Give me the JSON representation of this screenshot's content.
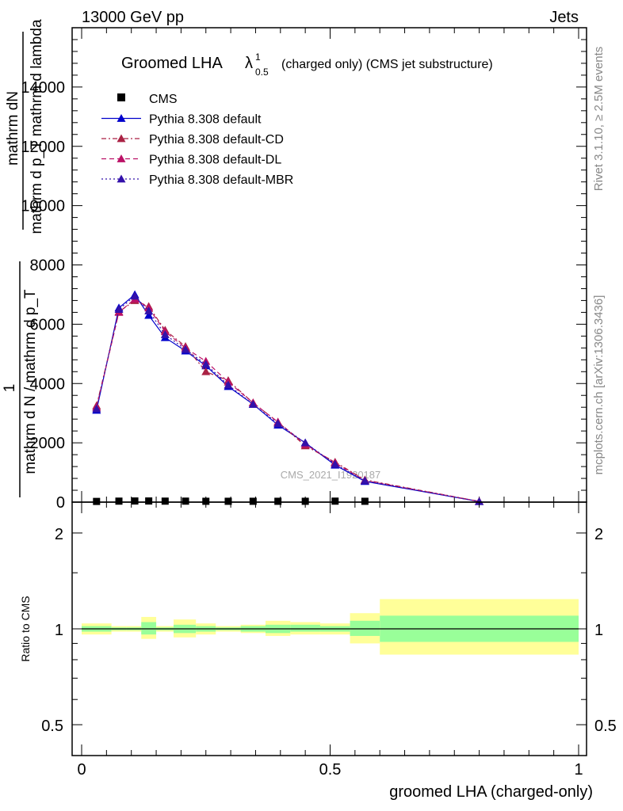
{
  "header": {
    "left": "13000 GeV pp",
    "right": "Jets"
  },
  "side_labels": {
    "rivet": "Rivet 3.1.10, ≥ 2.5M events",
    "mcplots": "mcplots.cern.ch [arXiv:1306.3436]"
  },
  "chart_data": [
    {
      "type": "line",
      "title_main": "Groomed LHA",
      "title_lambda": "λ",
      "title_sup": "1",
      "title_sub": "0.5",
      "title_rest": "(charged only) (CMS jet substructure)",
      "ylabel_top": "mathrm dN",
      "ylabel_bottom": "mathrm d p_T mathrm d lambda",
      "ylabel_fraction_top": "1",
      "ylabel_fraction_bottom": "mathrm d N / mathrm d p_T",
      "watermark": "CMS_2021_I1920187",
      "xlim": [
        0,
        1
      ],
      "ylim": [
        0,
        16000
      ],
      "yticks": [
        0,
        2000,
        4000,
        6000,
        8000,
        10000,
        12000,
        14000
      ],
      "ytick_labels": [
        "0",
        "2000",
        "4000",
        "6000",
        "8000",
        "10000",
        "12000",
        "14000"
      ],
      "legend_position": "top-left",
      "x": [
        0.03,
        0.075,
        0.107,
        0.135,
        0.168,
        0.209,
        0.25,
        0.295,
        0.345,
        0.395,
        0.45,
        0.51,
        0.57,
        0.8
      ],
      "series": [
        {
          "name": "CMS",
          "style": "marker",
          "color": "#000000",
          "values": [
            10,
            20,
            25,
            25,
            20,
            20,
            15,
            15,
            15,
            15,
            15,
            20,
            15,
            null
          ]
        },
        {
          "name": "Pythia 8.308 default",
          "style": "solid",
          "color": "#0000cc",
          "values": [
            3100,
            6550,
            7000,
            6300,
            5550,
            5100,
            4600,
            3900,
            3300,
            2600,
            2000,
            1250,
            700,
            20
          ]
        },
        {
          "name": "Pythia 8.308 default-CD",
          "style": "dashdot",
          "color": "#aa2244",
          "values": [
            3250,
            6420,
            6800,
            6600,
            5800,
            5250,
            4400,
            4100,
            3350,
            2700,
            1900,
            1350,
            750,
            25
          ]
        },
        {
          "name": "Pythia 8.308 default-DL",
          "style": "dashed",
          "color": "#bb1166",
          "values": [
            3200,
            6400,
            6850,
            6550,
            5750,
            5200,
            4750,
            4050,
            3350,
            2700,
            1950,
            1320,
            730,
            25
          ]
        },
        {
          "name": "Pythia 8.308 default-MBR",
          "style": "dotted",
          "color": "#3311aa",
          "values": [
            3150,
            6500,
            6950,
            6450,
            5650,
            5150,
            4650,
            3950,
            3300,
            2650,
            2000,
            1280,
            720,
            20
          ]
        }
      ]
    },
    {
      "type": "area",
      "ylabel": "Ratio to CMS",
      "xlabel": "groomed LHA (charged-only)",
      "xlim": [
        0,
        1
      ],
      "ylim": [
        0.4,
        2.5
      ],
      "log_y": true,
      "yticks": [
        0.5,
        1,
        2
      ],
      "ytick_labels": [
        "0.5",
        "1",
        "2"
      ],
      "xticks": [
        0,
        0.5,
        1
      ],
      "xtick_labels": [
        "0",
        "0.5",
        "1"
      ],
      "reference": 1,
      "bins": [
        {
          "x0": 0.0,
          "x1": 0.06,
          "green": [
            0.98,
            1.02
          ],
          "yellow": [
            0.96,
            1.04
          ]
        },
        {
          "x0": 0.06,
          "x1": 0.09,
          "green": [
            0.99,
            1.01
          ],
          "yellow": [
            0.98,
            1.02
          ]
        },
        {
          "x0": 0.09,
          "x1": 0.12,
          "green": [
            0.99,
            1.01
          ],
          "yellow": [
            0.98,
            1.02
          ]
        },
        {
          "x0": 0.12,
          "x1": 0.15,
          "green": [
            0.96,
            1.05
          ],
          "yellow": [
            0.93,
            1.09
          ]
        },
        {
          "x0": 0.15,
          "x1": 0.185,
          "green": [
            0.99,
            1.01
          ],
          "yellow": [
            0.98,
            1.02
          ]
        },
        {
          "x0": 0.185,
          "x1": 0.23,
          "green": [
            0.97,
            1.03
          ],
          "yellow": [
            0.94,
            1.07
          ]
        },
        {
          "x0": 0.23,
          "x1": 0.27,
          "green": [
            0.98,
            1.02
          ],
          "yellow": [
            0.96,
            1.04
          ]
        },
        {
          "x0": 0.27,
          "x1": 0.32,
          "green": [
            0.99,
            1.01
          ],
          "yellow": [
            0.98,
            1.02
          ]
        },
        {
          "x0": 0.32,
          "x1": 0.37,
          "green": [
            0.98,
            1.02
          ],
          "yellow": [
            0.97,
            1.03
          ]
        },
        {
          "x0": 0.37,
          "x1": 0.42,
          "green": [
            0.97,
            1.03
          ],
          "yellow": [
            0.95,
            1.06
          ]
        },
        {
          "x0": 0.42,
          "x1": 0.48,
          "green": [
            0.98,
            1.03
          ],
          "yellow": [
            0.96,
            1.05
          ]
        },
        {
          "x0": 0.48,
          "x1": 0.54,
          "green": [
            0.98,
            1.02
          ],
          "yellow": [
            0.96,
            1.04
          ]
        },
        {
          "x0": 0.54,
          "x1": 0.6,
          "green": [
            0.95,
            1.06
          ],
          "yellow": [
            0.9,
            1.12
          ]
        },
        {
          "x0": 0.6,
          "x1": 1.0,
          "green": [
            0.91,
            1.1
          ],
          "yellow": [
            0.83,
            1.24
          ]
        }
      ],
      "colors": {
        "green": "#99ff99",
        "yellow": "#ffff99"
      }
    }
  ]
}
